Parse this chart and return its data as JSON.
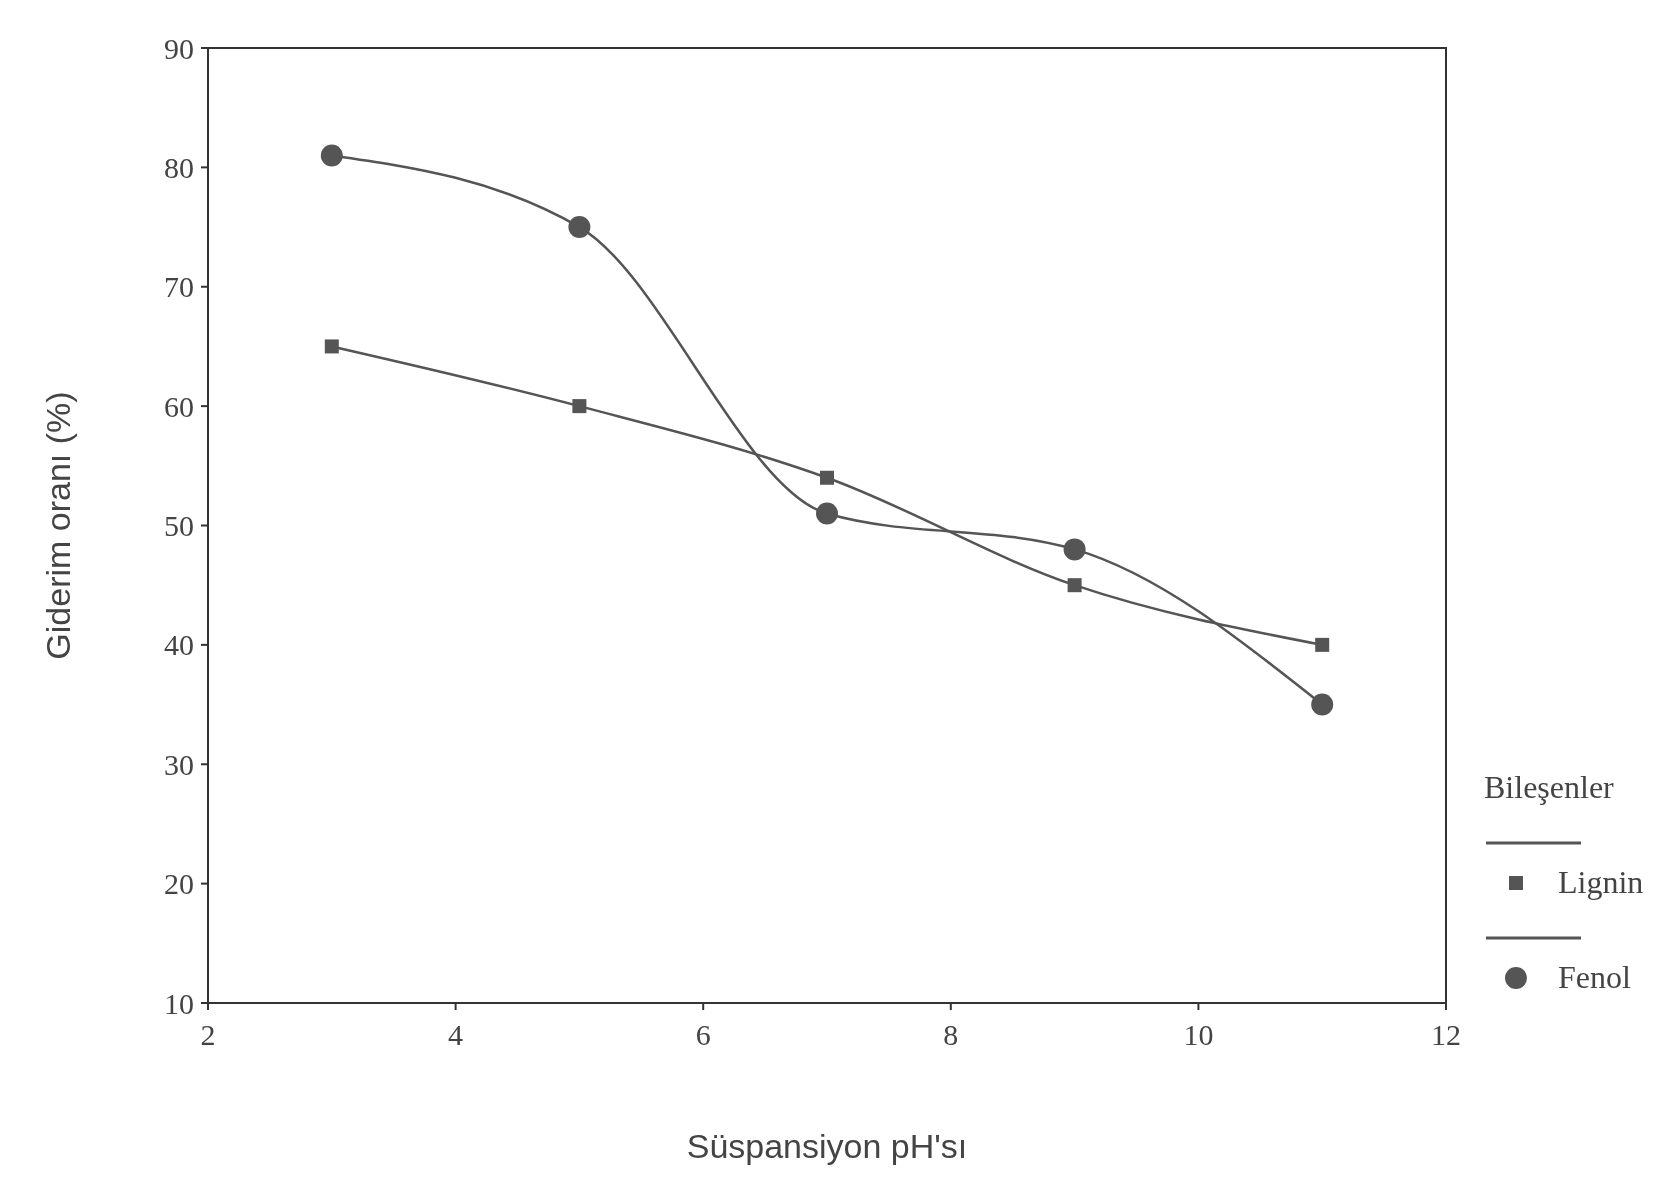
{
  "chart_data": {
    "type": "line",
    "xlabel": "Süspansiyon pH'sı",
    "ylabel": "Giderim oranı (%)",
    "legend_title": "Bileşenler",
    "x": [
      3,
      5,
      7,
      9,
      11
    ],
    "series": [
      {
        "name": "Lignin",
        "color": "#555555",
        "values": [
          65,
          60,
          54,
          45,
          40
        ],
        "marker": "square"
      },
      {
        "name": "Fenol",
        "color": "#555555",
        "values": [
          81,
          75,
          51,
          48,
          35
        ],
        "marker": "circle"
      }
    ],
    "xlim": [
      2,
      12
    ],
    "xticks": [
      2,
      4,
      6,
      8,
      10,
      12
    ],
    "ylim": [
      10,
      90
    ],
    "yticks": [
      10,
      20,
      30,
      40,
      50,
      60,
      70,
      80,
      90
    ],
    "legend": "right",
    "grid": false,
    "line_style": "solid"
  }
}
